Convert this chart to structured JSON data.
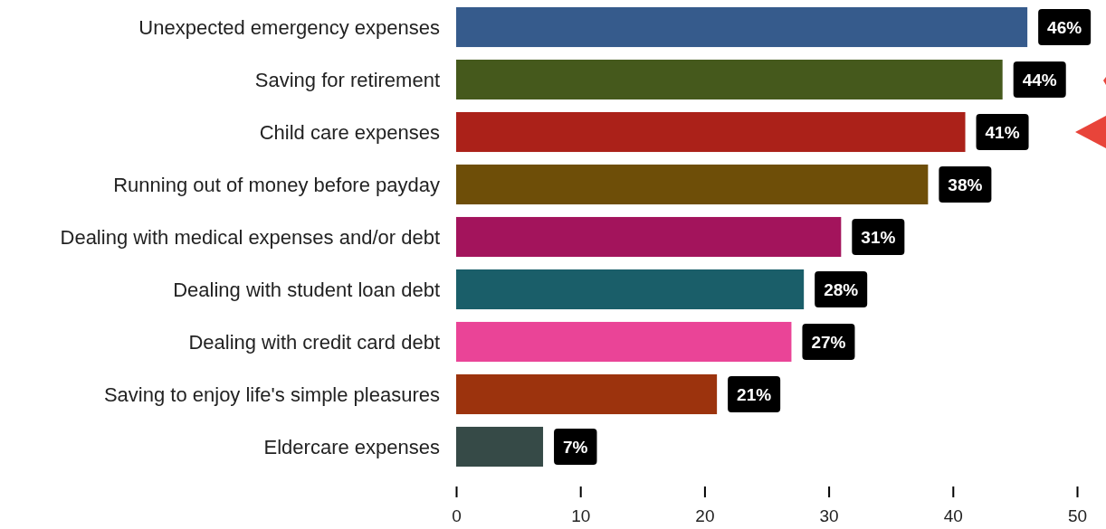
{
  "chart_data": {
    "type": "bar",
    "orientation": "horizontal",
    "categories": [
      "Unexpected emergency expenses",
      "Saving for retirement",
      "Child care expenses",
      "Running out of money before payday",
      "Dealing with medical expenses and/or debt",
      "Dealing with student loan debt",
      "Dealing with credit card debt",
      "Saving to enjoy life's simple pleasures",
      "Eldercare expenses"
    ],
    "values": [
      46,
      44,
      41,
      38,
      31,
      28,
      27,
      21,
      7
    ],
    "colors": [
      "#365b8c",
      "#45591c",
      "#ab2119",
      "#6e4e08",
      "#a3145c",
      "#1a5e69",
      "#ea4497",
      "#9c330d",
      "#364a47"
    ],
    "value_labels": [
      "46%",
      "44%",
      "41%",
      "38%",
      "31%",
      "28%",
      "27%",
      "21%",
      "7%"
    ],
    "xlim": [
      0,
      50
    ],
    "xticks": [
      0,
      10,
      20,
      30,
      40,
      50
    ]
  }
}
